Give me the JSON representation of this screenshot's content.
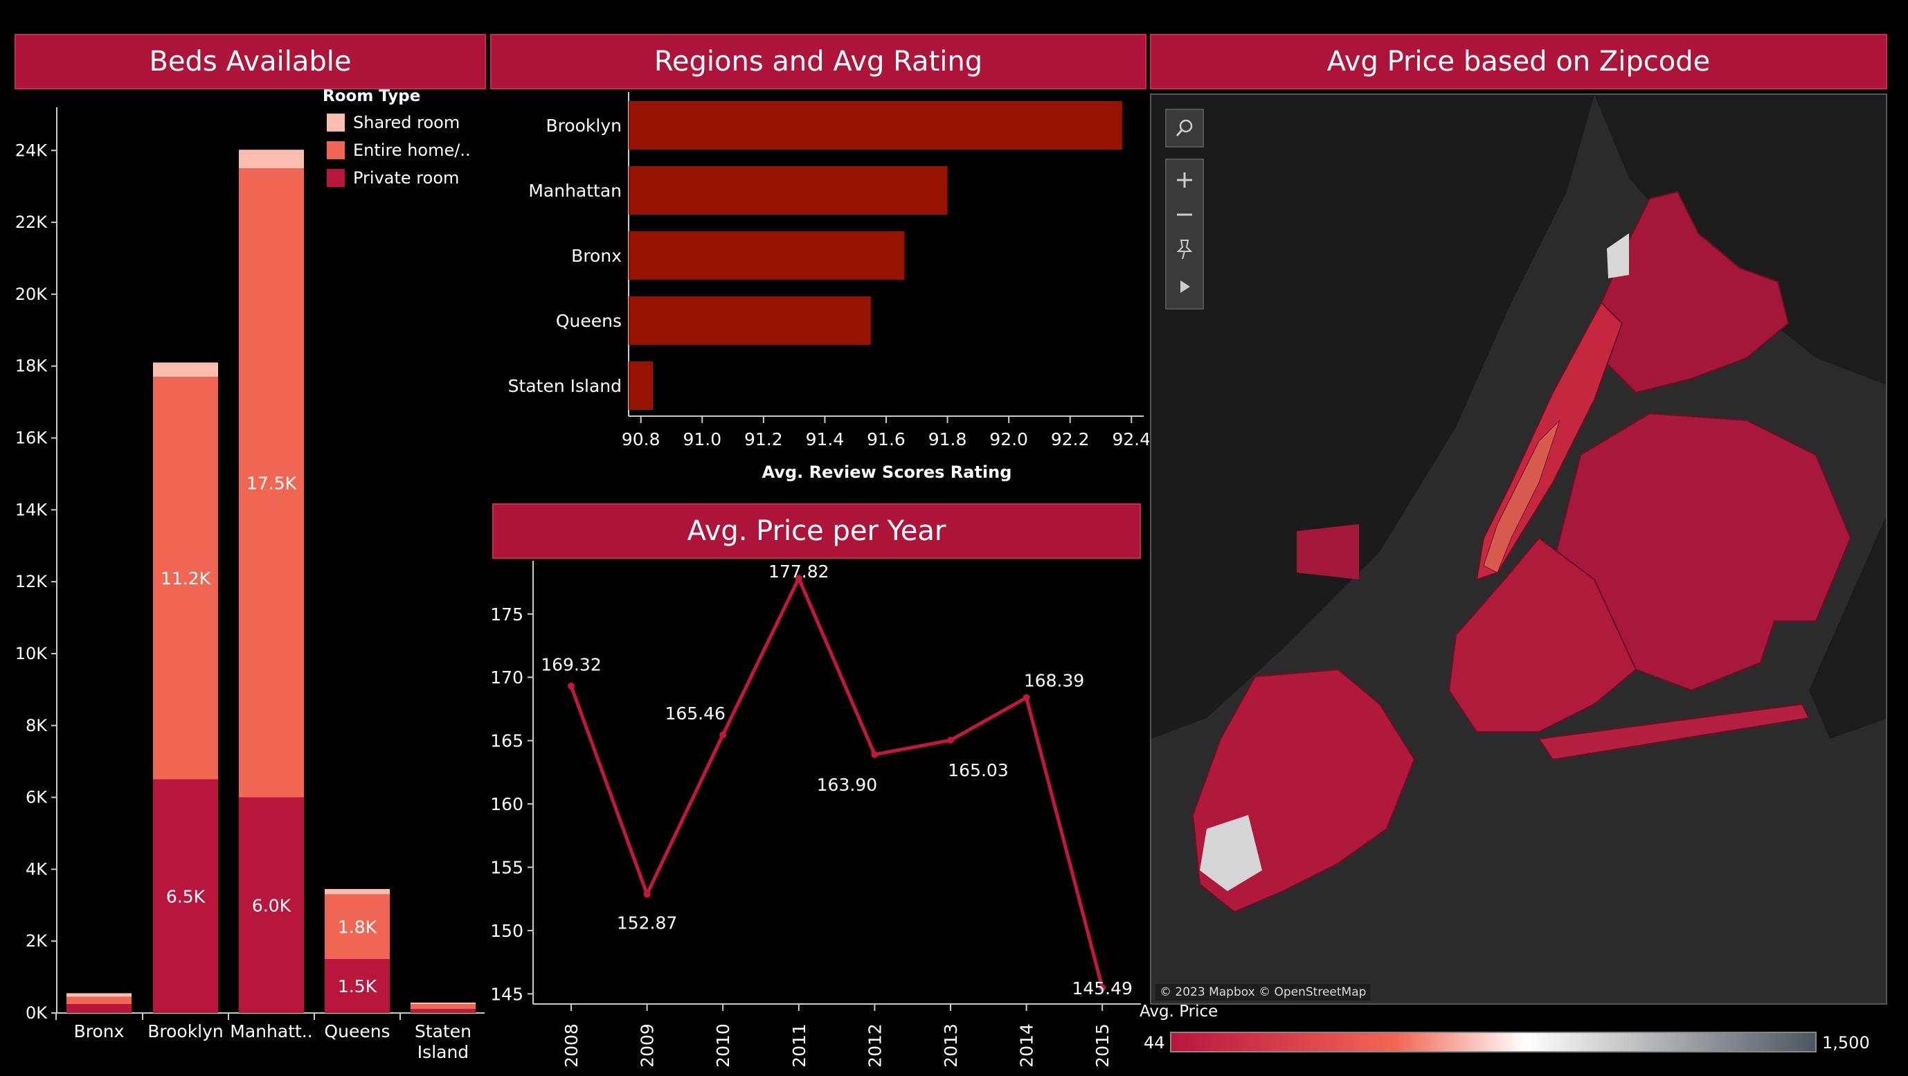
{
  "headers": {
    "beds": "Beds Available",
    "regions": "Regions and Avg Rating",
    "map": "Avg Price based on Zipcode",
    "price": "Avg. Price per Year"
  },
  "colors": {
    "header_bg": "#ae1439",
    "shared_room": "#fbbdb0",
    "entire_home": "#f26754",
    "private_room": "#b9163e",
    "rating_bar": "#951300",
    "line": "#c2173f"
  },
  "chart_data": [
    {
      "type": "bar",
      "stacked": true,
      "title": "Beds Available",
      "legend_title": "Room Type",
      "categories": [
        "Bronx",
        "Brooklyn",
        "Manhatt..",
        "Queens",
        "Staten Island"
      ],
      "series": [
        {
          "name": "Shared room",
          "values": [
            100,
            400,
            520,
            150,
            40
          ]
        },
        {
          "name": "Entire home/..",
          "values": [
            200,
            11200,
            17500,
            1800,
            140
          ],
          "labels": [
            "",
            "11.2K",
            "17.5K",
            "1.8K",
            ""
          ]
        },
        {
          "name": "Private room",
          "values": [
            250,
            6500,
            6000,
            1500,
            110
          ],
          "labels": [
            "",
            "6.5K",
            "6.0K",
            "1.5K",
            ""
          ]
        }
      ],
      "y_ticks": [
        "0K",
        "2K",
        "4K",
        "6K",
        "8K",
        "10K",
        "12K",
        "14K",
        "16K",
        "18K",
        "20K",
        "22K",
        "24K"
      ],
      "ylim": [
        0,
        25200
      ],
      "grid": false,
      "legend_position": "top-right"
    },
    {
      "type": "bar",
      "orientation": "horizontal",
      "title": "Regions and Avg Rating",
      "categories": [
        "Brooklyn",
        "Manhattan",
        "Bronx",
        "Queens",
        "Staten Island"
      ],
      "values": [
        92.37,
        91.8,
        91.66,
        91.55,
        90.84
      ],
      "xlabel": "Avg. Review Scores Rating",
      "x_ticks": [
        "90.8",
        "91.0",
        "91.2",
        "91.4",
        "91.6",
        "91.8",
        "92.0",
        "92.2",
        "92.4"
      ],
      "xlim": [
        90.76,
        92.44
      ]
    },
    {
      "type": "line",
      "title": "Avg. Price per Year",
      "x": [
        "2008",
        "2009",
        "2010",
        "2011",
        "2012",
        "2013",
        "2014",
        "2015"
      ],
      "values": [
        169.32,
        152.87,
        165.46,
        177.82,
        163.9,
        165.03,
        168.39,
        145.49
      ],
      "labels": [
        "169.32",
        "152.87",
        "165.46",
        "177.82",
        "163.90",
        "165.03",
        "168.39",
        "145.49"
      ],
      "y_ticks": [
        "145",
        "150",
        "155",
        "160",
        "165",
        "170",
        "175"
      ],
      "ylim": [
        144.2,
        179.2
      ]
    }
  ],
  "map": {
    "credit": "© 2023 Mapbox © OpenStreetMap",
    "legend_title": "Avg. Price",
    "legend_min": "44",
    "legend_max": "1,500",
    "tools": [
      "search-icon",
      "zoom-in-icon",
      "zoom-out-icon",
      "pin-icon",
      "play-icon"
    ]
  }
}
